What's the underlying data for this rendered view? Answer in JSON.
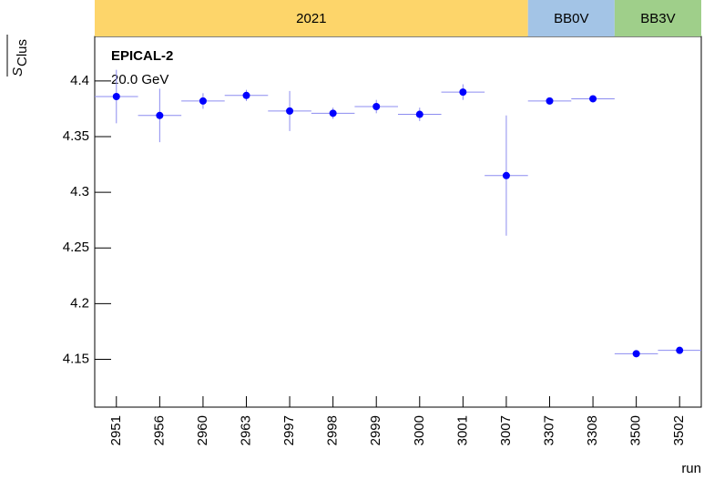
{
  "chart_data": {
    "type": "errorbar",
    "ylabel": "S",
    "ylabel_sub": "Clus",
    "xlabel": "run",
    "annotations": [
      "EPICAL-2",
      "20.0 GeV"
    ],
    "categories": [
      "2951",
      "2956",
      "2960",
      "2963",
      "2997",
      "2998",
      "2999",
      "3000",
      "3001",
      "3007",
      "3307",
      "3308",
      "3500",
      "3502"
    ],
    "series": [
      {
        "color": "#0000ff",
        "error_color": "#8c8cf0",
        "values": [
          4.386,
          4.369,
          4.382,
          4.387,
          4.373,
          4.371,
          4.377,
          4.37,
          4.39,
          4.315,
          4.382,
          4.384,
          4.155,
          4.158
        ],
        "errors": [
          0.024,
          0.024,
          0.007,
          0.005,
          0.018,
          0.005,
          0.006,
          0.006,
          0.007,
          0.054,
          0.002,
          0.002,
          0.002,
          0.002
        ]
      }
    ],
    "bands": [
      {
        "label": "2021",
        "color": "#fdd56a",
        "span": 10
      },
      {
        "label": "BB0V",
        "color": "#a3c4e6",
        "span": 2
      },
      {
        "label": "BB3V",
        "color": "#9fcf8a",
        "span": 2
      }
    ],
    "ylim": [
      4.107,
      4.44
    ],
    "yticks": [
      {
        "value": 4.15,
        "label": "4.15"
      },
      {
        "value": 4.2,
        "label": "4.2"
      },
      {
        "value": 4.25,
        "label": "4.25"
      },
      {
        "value": 4.3,
        "label": "4.3"
      },
      {
        "value": 4.35,
        "label": "4.35"
      },
      {
        "value": 4.4,
        "label": "4.4"
      }
    ]
  }
}
